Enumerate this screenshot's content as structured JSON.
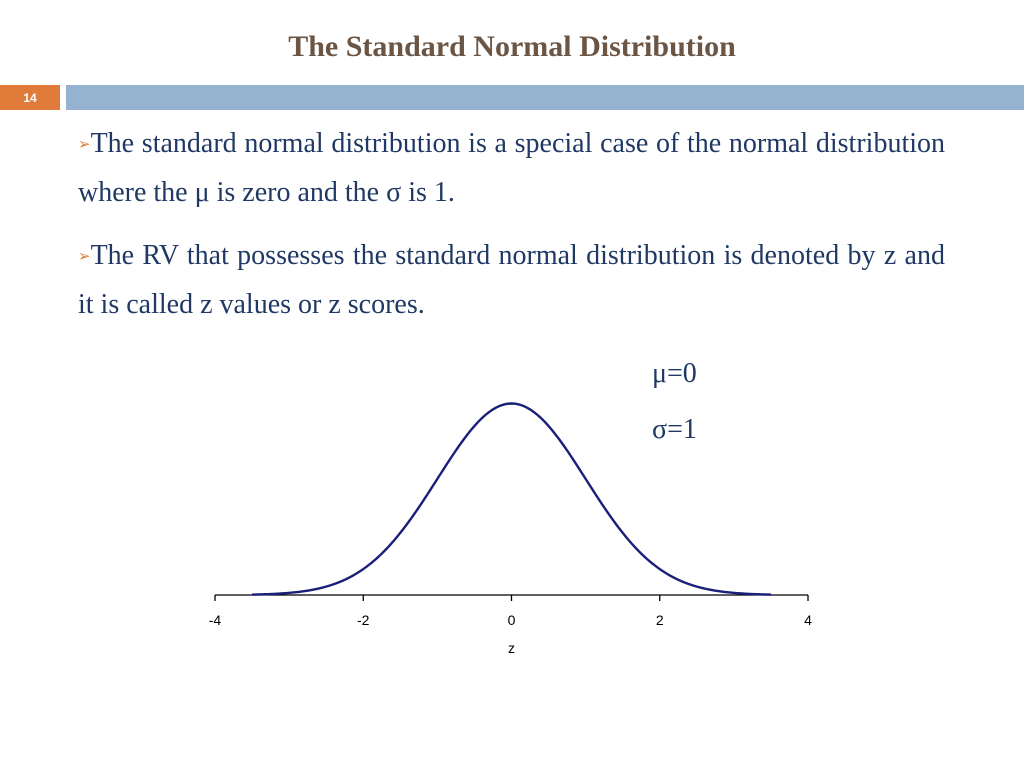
{
  "slide": {
    "title": "The Standard Normal Distribution",
    "number": "14"
  },
  "bullets": [
    {
      "marker": "➢",
      "text": "The standard normal distribution is a special case of the normal distribution where the μ is zero and the σ is 1."
    },
    {
      "marker": "➢",
      "text": "The RV that possesses the standard normal distribution is denoted by z and it is called z values or z scores."
    }
  ],
  "params": {
    "mu": "μ=0",
    "sigma": "σ=1"
  },
  "colors": {
    "title": "#6b5544",
    "accent": "#e07b39",
    "bar": "#95b3d0",
    "text": "#1f3864",
    "curve": "#1a1f7a"
  },
  "chart_data": {
    "type": "line",
    "title": "",
    "xlabel": "z",
    "ylabel": "",
    "xlim": [
      -4,
      4
    ],
    "ylim": [
      0,
      0.4
    ],
    "xticks": [
      "-4",
      "-2",
      "0",
      "2",
      "4"
    ],
    "grid": false,
    "series": [
      {
        "distribution": "standard normal",
        "mean": 0,
        "sd": 1,
        "x_range": [
          -3.5,
          3.5
        ]
      }
    ]
  }
}
